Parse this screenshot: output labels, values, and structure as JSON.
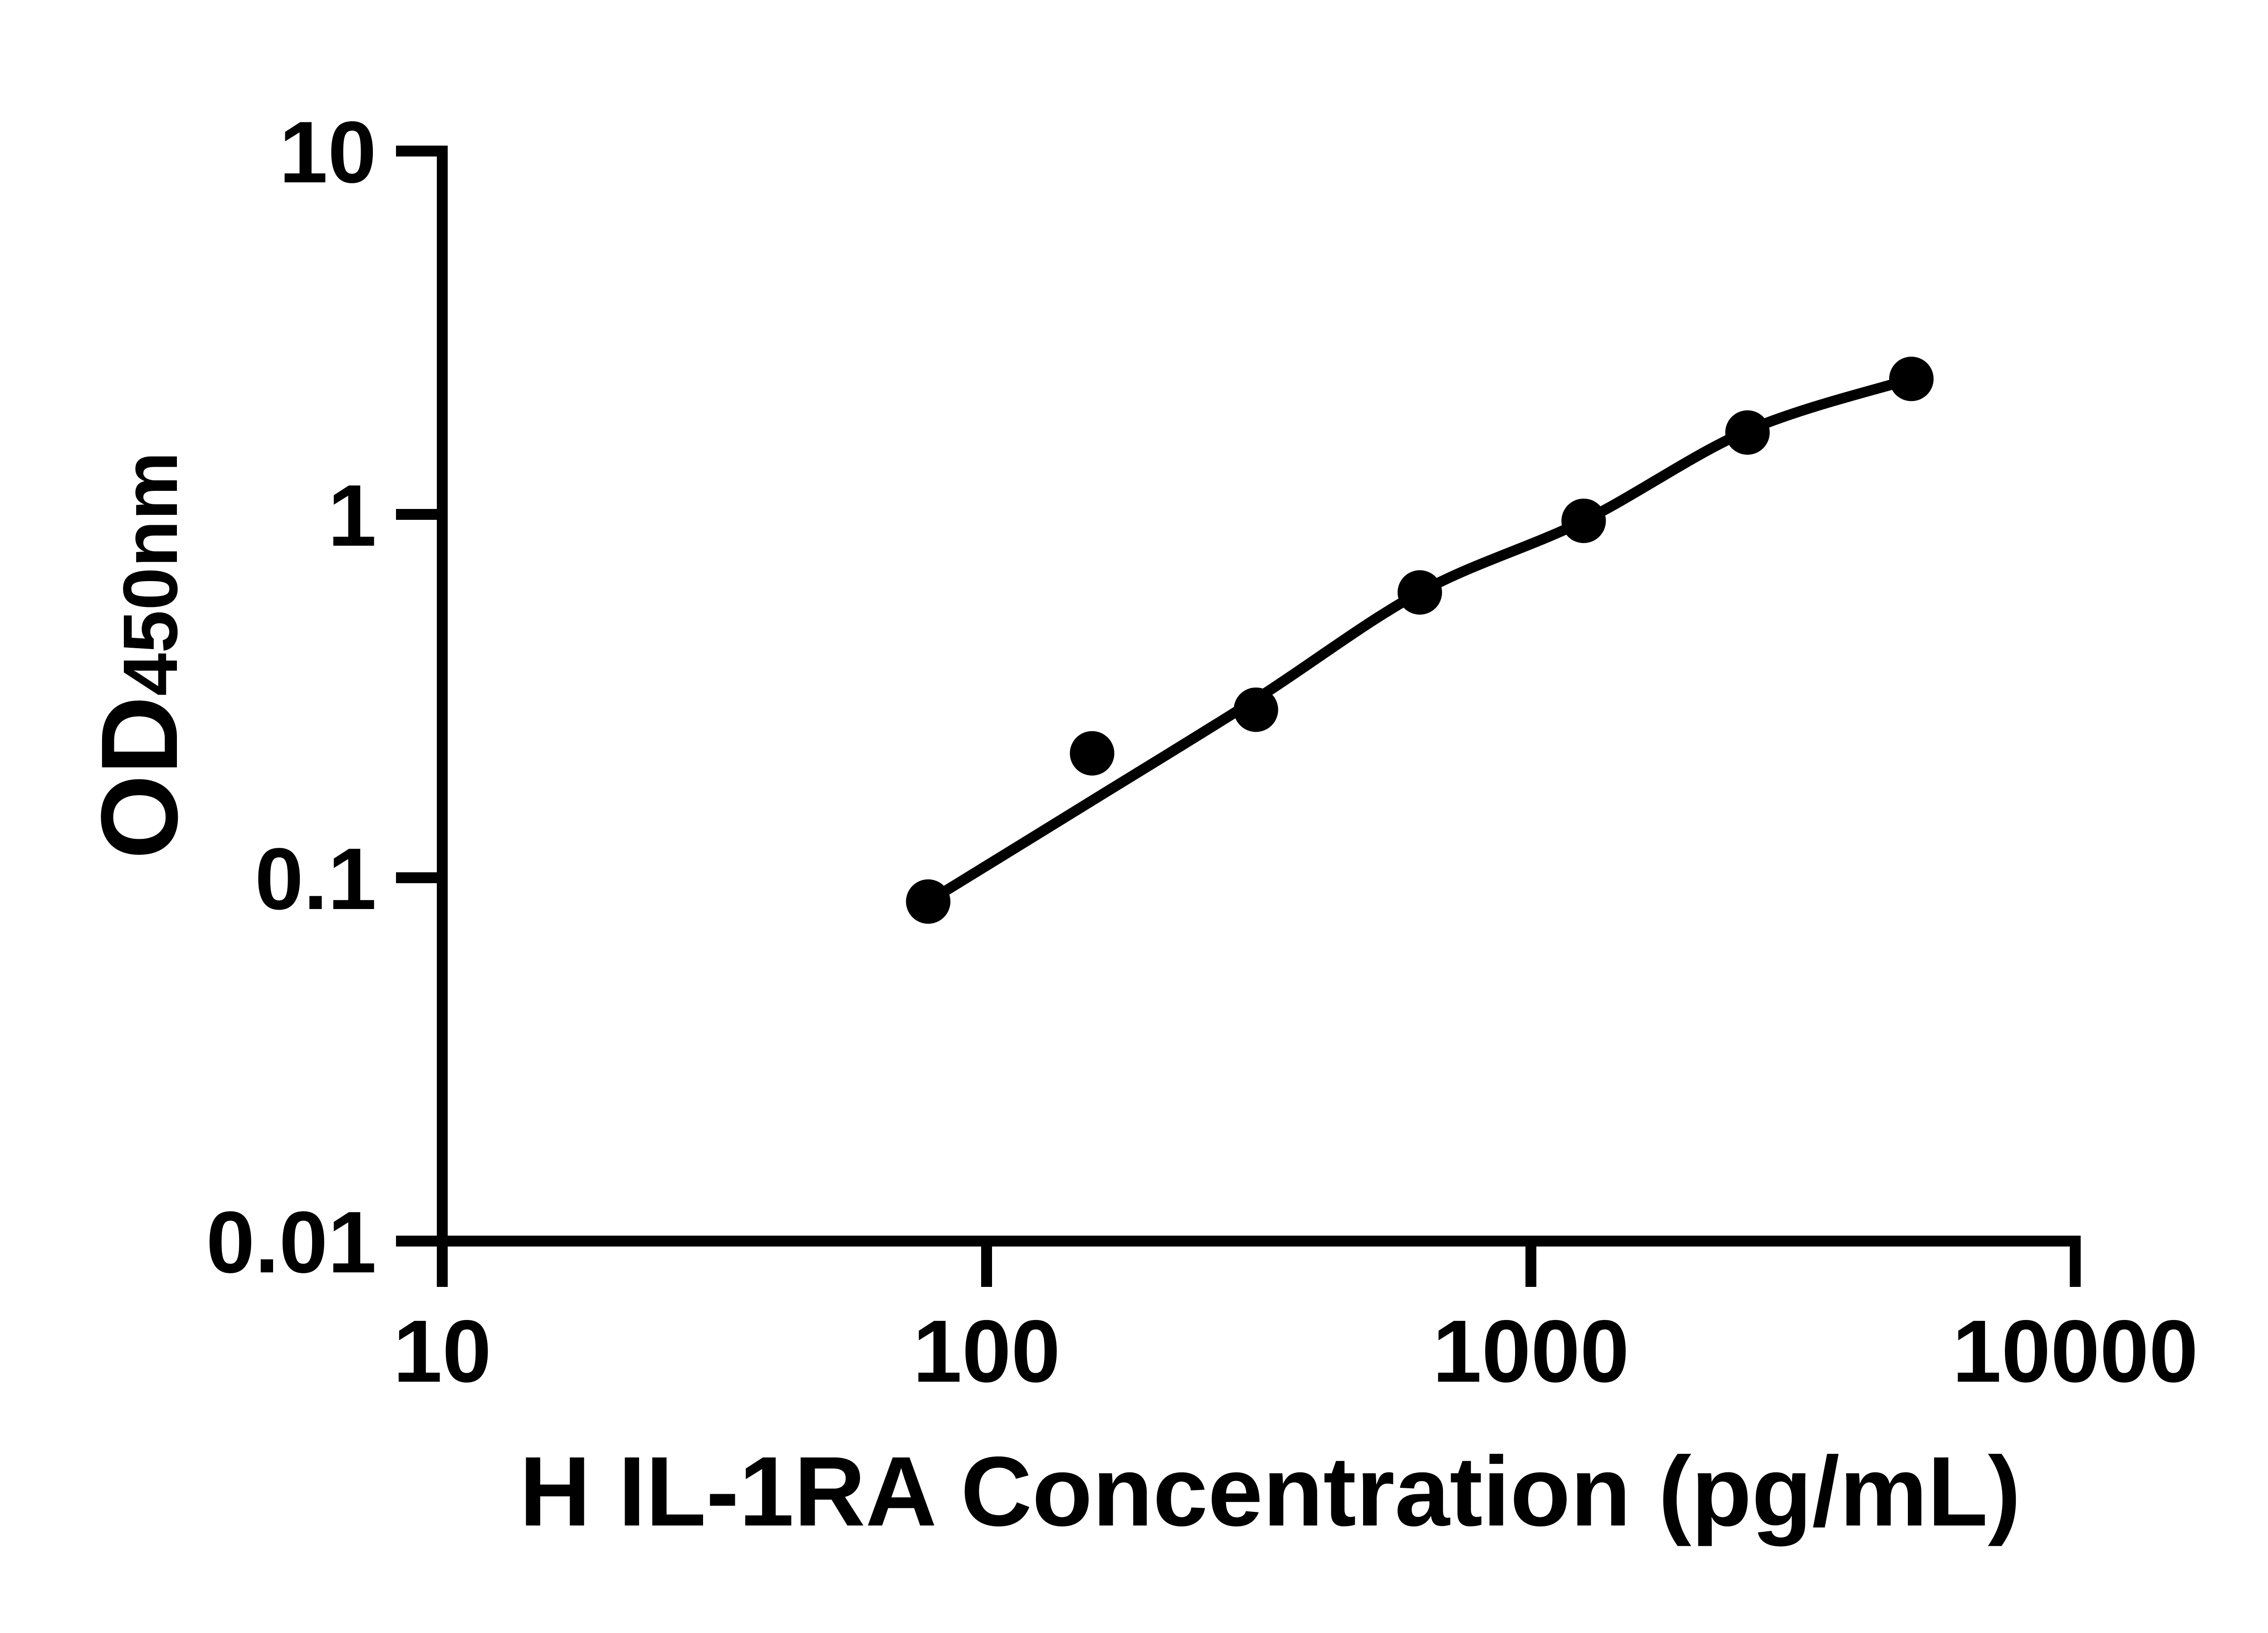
{
  "figure": {
    "background_color": "#ffffff",
    "foreground_color": "#000000"
  },
  "chart_data": {
    "type": "scatter",
    "title": "",
    "xlabel": "H IL-1RA Concentration (pg/mL)",
    "ylabel_main": "OD",
    "ylabel_sub": "450nm",
    "x_scale": "log10",
    "y_scale": "log10",
    "xlim": [
      10,
      10000
    ],
    "ylim": [
      0.01,
      10
    ],
    "x_ticks": [
      10,
      100,
      1000,
      10000
    ],
    "x_tick_labels": [
      "10",
      "100",
      "1000",
      "10000"
    ],
    "y_ticks": [
      10,
      1,
      0.1,
      0.01
    ],
    "y_tick_labels": [
      "10",
      "1",
      "0.1",
      "0.01"
    ],
    "grid": false,
    "legend": "none",
    "series": [
      {
        "name": "standard-points",
        "type": "scatter",
        "marker": "filled-circle",
        "color": "#000000",
        "x": [
          78.125,
          156.25,
          312.5,
          625,
          1250,
          2500,
          5000
        ],
        "y": [
          0.086,
          0.22,
          0.29,
          0.61,
          0.96,
          1.68,
          2.36
        ]
      },
      {
        "name": "fit-curve",
        "type": "line",
        "color": "#000000",
        "x": [
          78.125,
          156.25,
          312.5,
          625,
          1250,
          2500,
          5000
        ],
        "y": [
          0.086,
          0.163,
          0.31,
          0.61,
          0.96,
          1.7,
          2.36
        ]
      }
    ]
  }
}
